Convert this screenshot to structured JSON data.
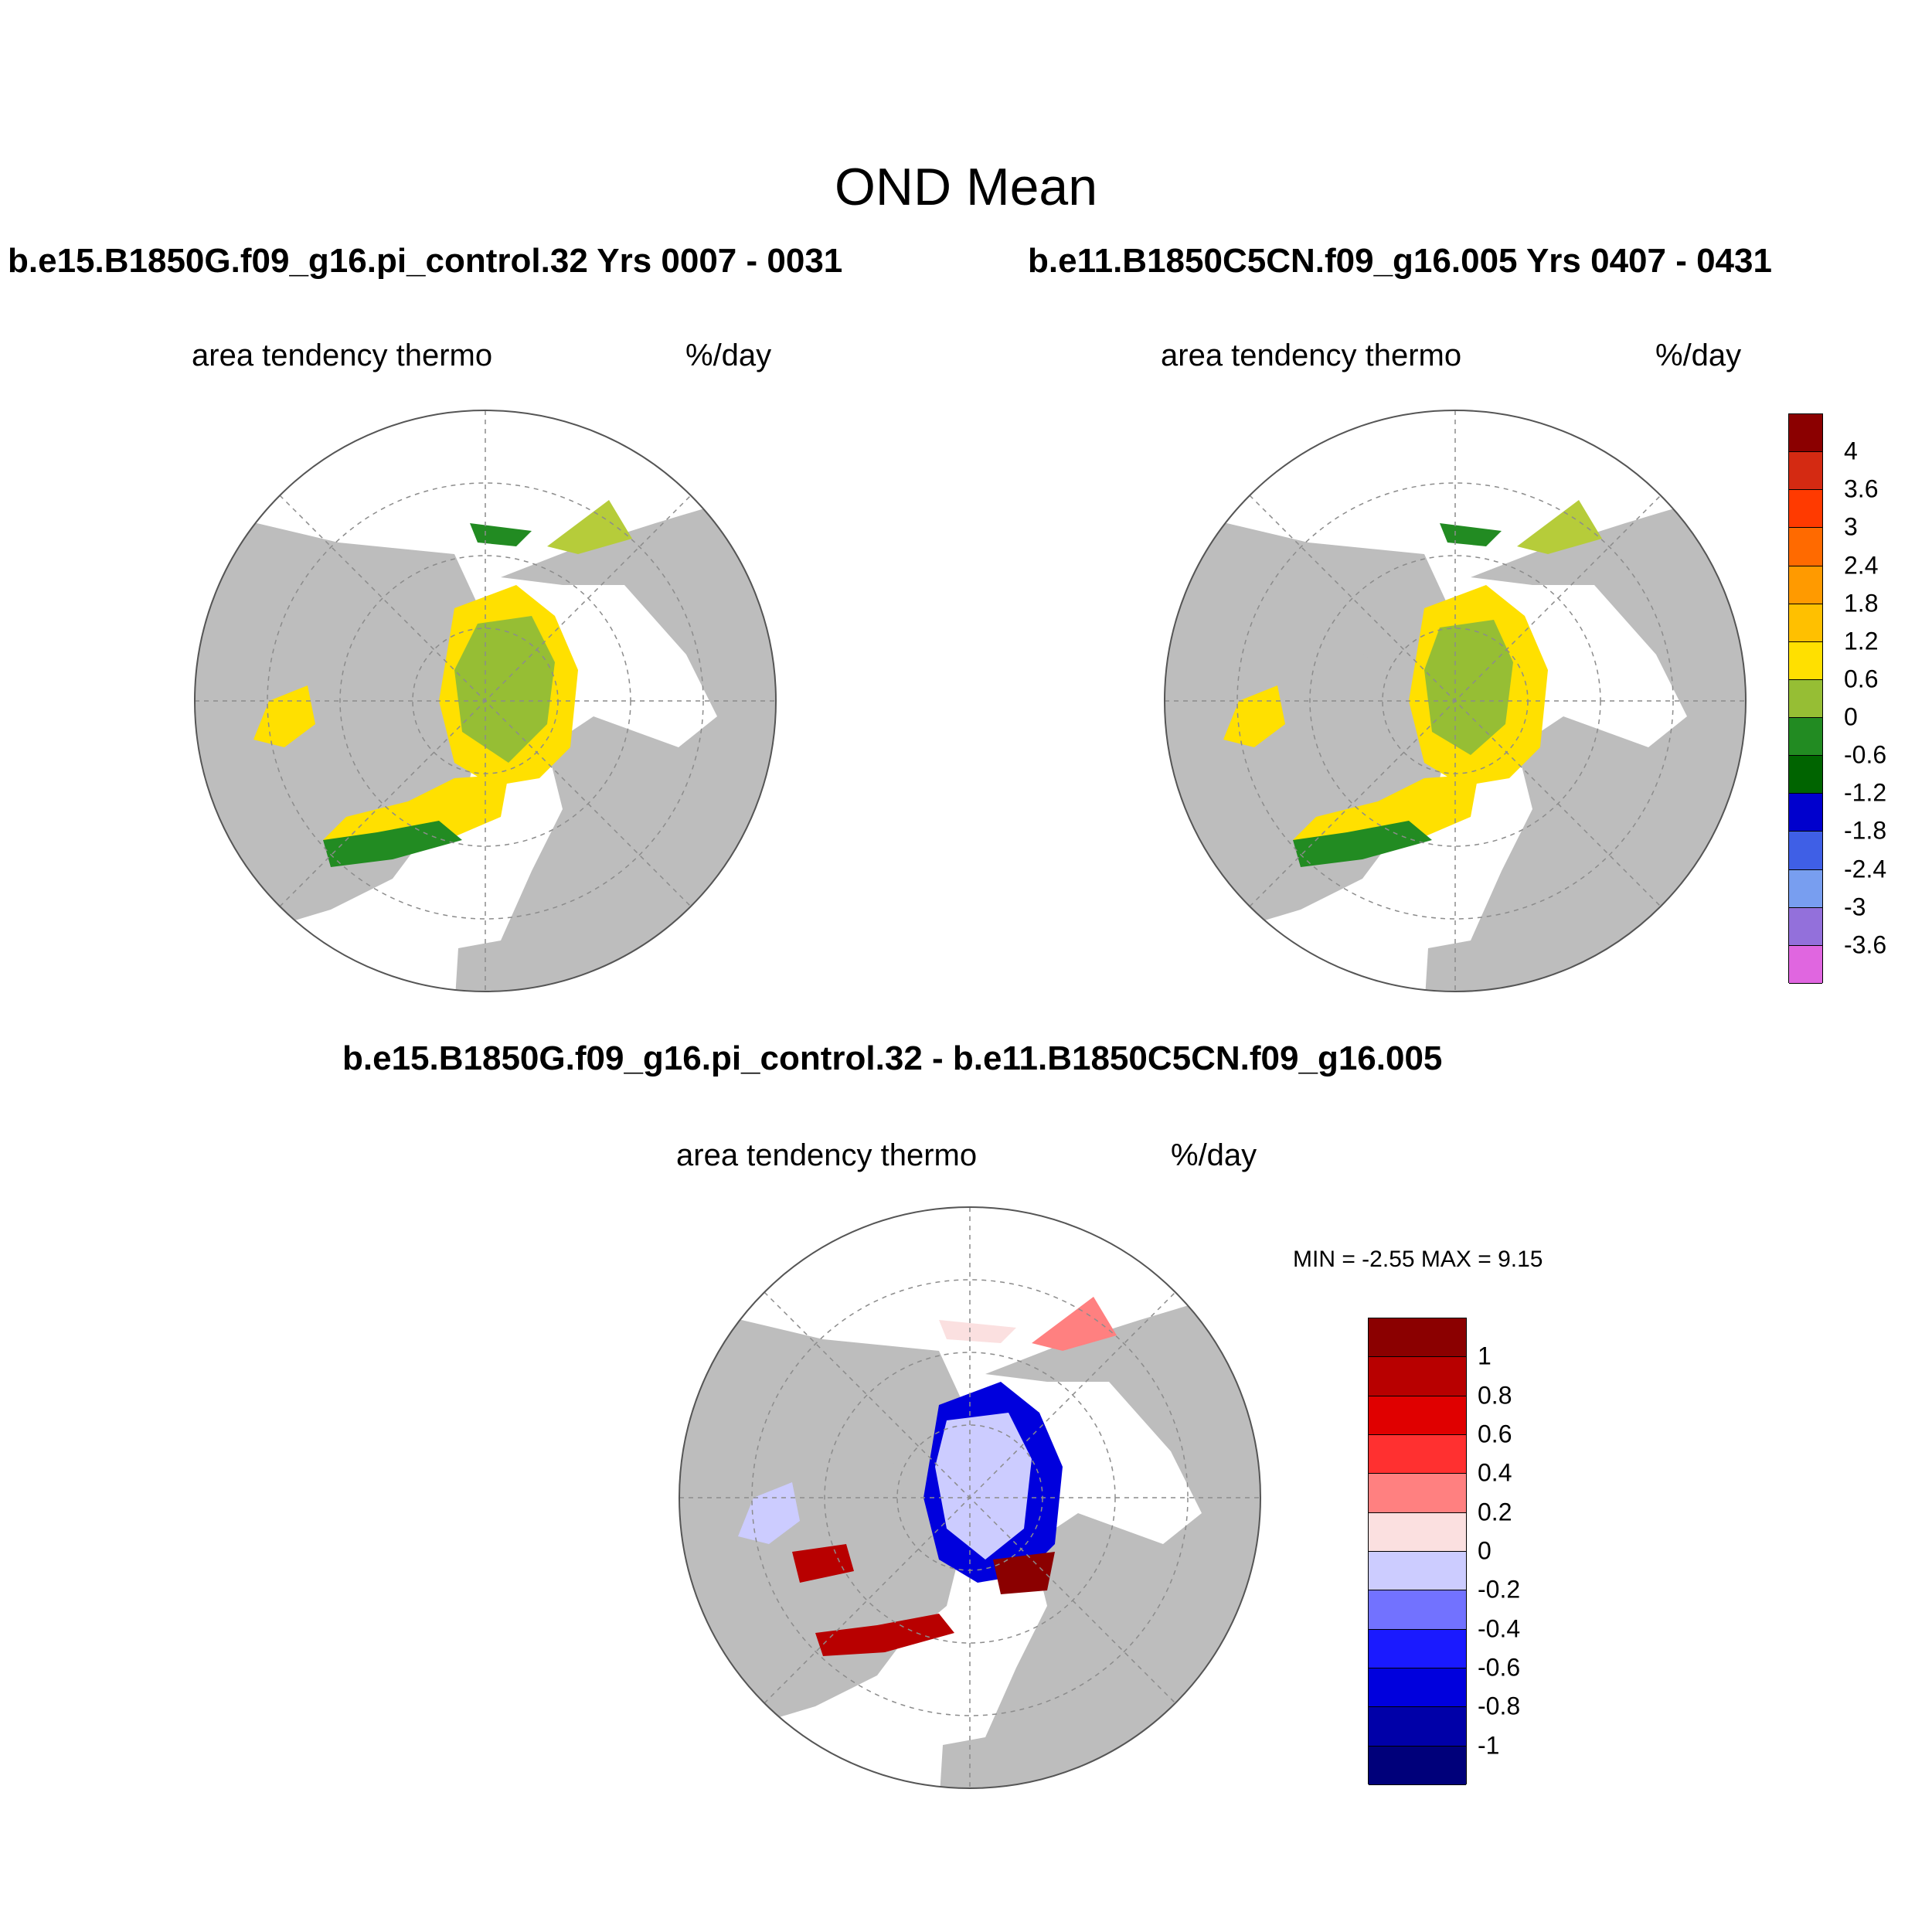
{
  "title": "OND Mean",
  "panels": [
    {
      "case": "b.e15.B1850G.f09_g16.pi_control.32  Yrs 0007 - 0031",
      "field": "area tendency thermo",
      "units": "%/day"
    },
    {
      "case": "b.e11.B1850C5CN.f09_g16.005  Yrs 0407 - 0431",
      "field": "area tendency thermo",
      "units": "%/day"
    },
    {
      "case": "b.e15.B1850G.f09_g16.pi_control.32 - b.e11.B1850C5CN.f09_g16.005",
      "field": "area tendency thermo",
      "units": "%/day"
    }
  ],
  "stats": "MIN =  -2.55 MAX =   9.15",
  "colorbar_main": {
    "labels": [
      "4",
      "3.6",
      "3",
      "2.4",
      "1.8",
      "1.2",
      "0.6",
      "0",
      "-0.6",
      "-1.2",
      "-1.8",
      "-2.4",
      "-3",
      "-3.6"
    ],
    "colors": [
      "#8b0000",
      "#d42a12",
      "#ff3a00",
      "#ff6a00",
      "#ff9a00",
      "#ffc000",
      "#ffe000",
      "#96be34",
      "#228b22",
      "#006400",
      "#0000cd",
      "#3f5fe6",
      "#789ef0",
      "#9370db",
      "#e066e0"
    ]
  },
  "colorbar_diff": {
    "labels": [
      "1",
      "0.8",
      "0.6",
      "0.4",
      "0.2",
      "0",
      "-0.2",
      "-0.4",
      "-0.6",
      "-0.8",
      "-1"
    ],
    "colors": [
      "#8b0000",
      "#b80000",
      "#e00000",
      "#ff3030",
      "#ff8080",
      "#fbe0e0",
      "#ccccff",
      "#7272ff",
      "#1a1aff",
      "#0000dd",
      "#0000a8",
      "#00007a"
    ]
  },
  "map_colors": {
    "land": "#bdbdbd",
    "ocean": "#ffffff",
    "grid": "#8c8c8c"
  }
}
